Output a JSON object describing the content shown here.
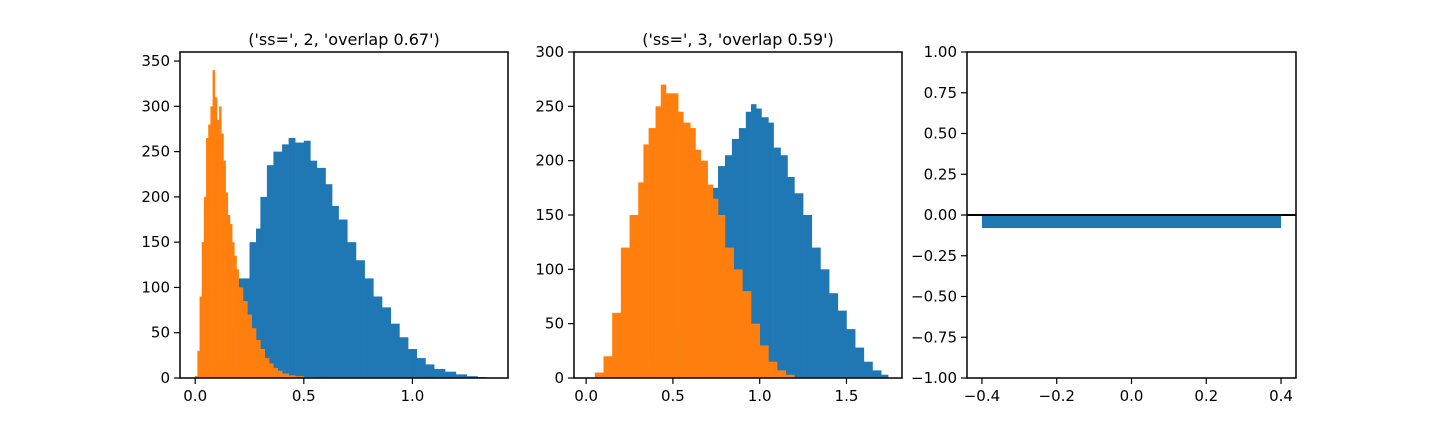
{
  "chart_data": [
    {
      "type": "histogram",
      "title": "('ss=', 2, 'overlap 0.67')",
      "xlim": [
        -0.07,
        1.44
      ],
      "ylim": [
        0,
        360
      ],
      "xticks": [
        0.0,
        0.5,
        1.0
      ],
      "xtick_labels": [
        "0.0",
        "0.5",
        "1.0"
      ],
      "yticks": [
        0,
        50,
        100,
        150,
        200,
        250,
        300,
        350
      ],
      "ytick_labels": [
        "0",
        "50",
        "100",
        "150",
        "200",
        "250",
        "300",
        "350"
      ],
      "series": [
        {
          "color": "#1f77b4",
          "bin_width": 0.0135,
          "x": [
            0.0,
            0.05,
            0.1,
            0.15,
            0.2,
            0.25,
            0.28,
            0.3,
            0.33,
            0.36,
            0.4,
            0.43,
            0.46,
            0.5,
            0.53,
            0.56,
            0.6,
            0.63,
            0.66,
            0.7,
            0.74,
            0.78,
            0.82,
            0.86,
            0.9,
            0.94,
            0.98,
            1.02,
            1.06,
            1.1,
            1.15,
            1.2,
            1.25,
            1.3,
            1.34
          ],
          "y": [
            2,
            4,
            18,
            55,
            110,
            150,
            165,
            200,
            235,
            250,
            258,
            265,
            260,
            262,
            240,
            232,
            214,
            190,
            175,
            150,
            130,
            110,
            90,
            78,
            60,
            45,
            32,
            22,
            15,
            10,
            7,
            4,
            2,
            1,
            0
          ]
        },
        {
          "color": "#ff7f0e",
          "bin_width": 0.0068,
          "x": [
            0.0,
            0.01,
            0.02,
            0.03,
            0.04,
            0.05,
            0.06,
            0.07,
            0.08,
            0.09,
            0.1,
            0.11,
            0.12,
            0.13,
            0.14,
            0.15,
            0.16,
            0.17,
            0.18,
            0.19,
            0.2,
            0.22,
            0.24,
            0.26,
            0.28,
            0.3,
            0.32,
            0.34,
            0.36,
            0.38,
            0.4,
            0.43,
            0.46,
            0.5,
            0.55
          ],
          "y": [
            2,
            30,
            90,
            150,
            200,
            265,
            280,
            300,
            340,
            310,
            285,
            300,
            270,
            240,
            205,
            180,
            170,
            150,
            135,
            120,
            100,
            85,
            70,
            55,
            42,
            32,
            22,
            16,
            11,
            8,
            5,
            3,
            2,
            1,
            0
          ]
        }
      ]
    },
    {
      "type": "histogram",
      "title": "('ss=', 3, 'overlap 0.59')",
      "xlim": [
        -0.07,
        1.82
      ],
      "ylim": [
        0,
        300
      ],
      "xticks": [
        0.0,
        0.5,
        1.0,
        1.5
      ],
      "xtick_labels": [
        "0.0",
        "0.5",
        "1.0",
        "1.5"
      ],
      "yticks": [
        0,
        50,
        100,
        150,
        200,
        250,
        300
      ],
      "ytick_labels": [
        "0",
        "50",
        "100",
        "150",
        "200",
        "250",
        "300"
      ],
      "series": [
        {
          "color": "#1f77b4",
          "bin_width": 0.0175,
          "x": [
            0.3,
            0.4,
            0.5,
            0.55,
            0.6,
            0.65,
            0.7,
            0.73,
            0.76,
            0.8,
            0.84,
            0.88,
            0.92,
            0.95,
            0.98,
            1.01,
            1.05,
            1.08,
            1.12,
            1.16,
            1.2,
            1.25,
            1.3,
            1.35,
            1.4,
            1.45,
            1.5,
            1.55,
            1.6,
            1.65,
            1.7,
            1.74
          ],
          "y": [
            8,
            18,
            45,
            60,
            90,
            120,
            150,
            175,
            195,
            205,
            220,
            230,
            245,
            252,
            248,
            240,
            235,
            212,
            205,
            185,
            170,
            150,
            120,
            100,
            78,
            62,
            45,
            28,
            15,
            7,
            3,
            0
          ]
        },
        {
          "color": "#ff7f0e",
          "bin_width": 0.0175,
          "x": [
            0.05,
            0.1,
            0.15,
            0.2,
            0.25,
            0.3,
            0.33,
            0.36,
            0.4,
            0.43,
            0.46,
            0.5,
            0.53,
            0.56,
            0.6,
            0.63,
            0.66,
            0.7,
            0.73,
            0.76,
            0.8,
            0.85,
            0.9,
            0.95,
            1.0,
            1.05,
            1.1,
            1.15,
            1.2
          ],
          "y": [
            5,
            20,
            60,
            120,
            150,
            180,
            215,
            230,
            250,
            270,
            262,
            262,
            245,
            235,
            230,
            210,
            200,
            178,
            165,
            150,
            120,
            100,
            80,
            50,
            30,
            15,
            7,
            3,
            0
          ]
        }
      ]
    },
    {
      "type": "bar",
      "title": "",
      "xlim": [
        -0.44,
        0.44
      ],
      "ylim": [
        -1.0,
        1.0
      ],
      "xticks": [
        -0.4,
        -0.2,
        0.0,
        0.2,
        0.4
      ],
      "xtick_labels": [
        "−0.4",
        "−0.2",
        "0.0",
        "0.2",
        "0.4"
      ],
      "yticks": [
        -1.0,
        -0.75,
        -0.5,
        -0.25,
        0.0,
        0.25,
        0.5,
        0.75,
        1.0
      ],
      "ytick_labels": [
        "−1.00",
        "−0.75",
        "−0.50",
        "−0.25",
        "0.00",
        "0.25",
        "0.50",
        "0.75",
        "1.00"
      ],
      "hline": 0,
      "series": [
        {
          "color": "#1f77b4",
          "x": [
            0.0
          ],
          "width": 0.8,
          "y": [
            -0.08
          ]
        }
      ]
    }
  ]
}
